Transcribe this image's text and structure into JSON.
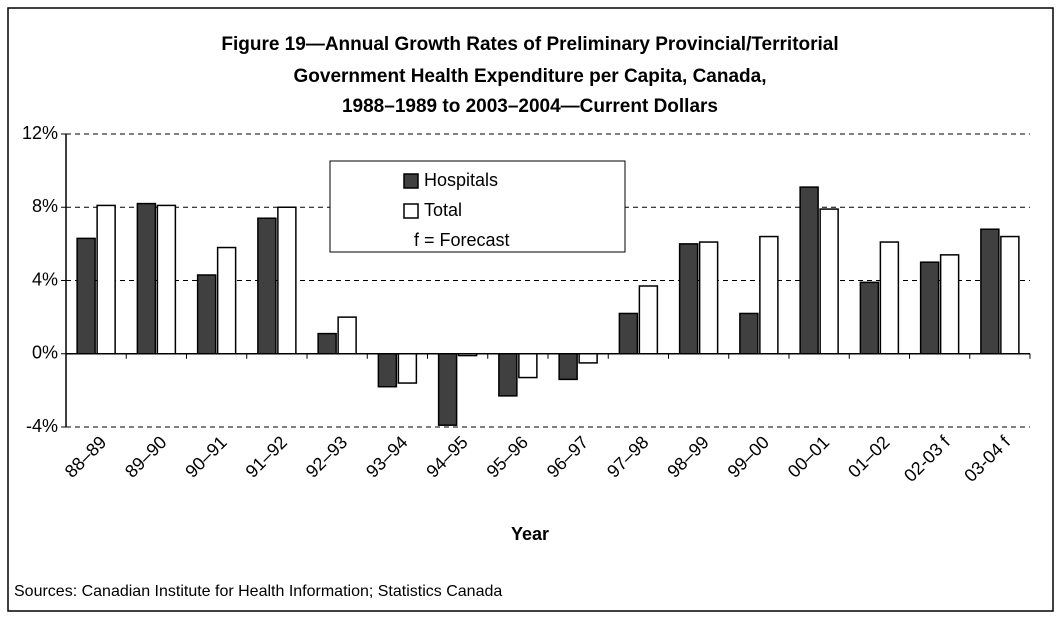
{
  "chart_data": {
    "type": "bar",
    "title_lines": [
      "Figure 19—Annual Growth Rates of Preliminary Provincial/Territorial",
      "Government Health Expenditure per Capita, Canada,",
      "1988–1989 to 2003–2004—Current Dollars"
    ],
    "x_label": "Year",
    "source": "Sources: Canadian Institute for Health Information; Statistics Canada",
    "annotation": "f  =  Forecast",
    "categories": [
      "88–89",
      "89–90",
      "90–91",
      "91–92",
      "92–93",
      "93–94",
      "94–95",
      "95–96",
      "96–97",
      "97–98",
      "98–99",
      "99–00",
      "00–01",
      "01–02",
      "02-03 f",
      "03-04 f"
    ],
    "series": [
      {
        "name": "Hospitals",
        "color": "#404040",
        "values": [
          6.3,
          8.2,
          4.3,
          7.4,
          1.1,
          -1.8,
          -3.9,
          -2.3,
          -1.4,
          2.2,
          6.0,
          2.2,
          9.1,
          3.9,
          5.0,
          6.8
        ]
      },
      {
        "name": "Total",
        "color": "#ffffff",
        "values": [
          8.1,
          8.1,
          5.8,
          8.0,
          2.0,
          -1.6,
          -0.1,
          -1.3,
          -0.5,
          3.7,
          6.1,
          6.4,
          7.9,
          6.1,
          5.4,
          6.4
        ]
      }
    ],
    "ylim": [
      -4,
      12
    ],
    "yticks": [
      {
        "value": -4,
        "label": "-4%"
      },
      {
        "value": 0,
        "label": "0%"
      },
      {
        "value": 4,
        "label": "4%"
      },
      {
        "value": 8,
        "label": "8%"
      },
      {
        "value": 12,
        "label": "12%"
      }
    ],
    "grid": true
  }
}
